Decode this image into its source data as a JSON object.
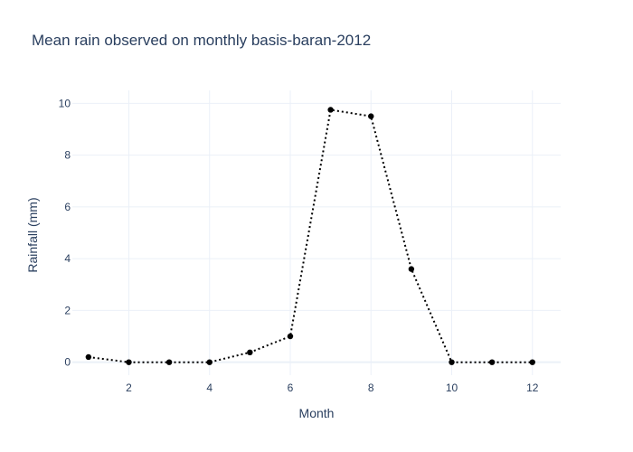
{
  "chart_data": {
    "type": "line",
    "title": "Mean rain observed on monthly basis-baran-2012",
    "xlabel": "Month",
    "ylabel": "Rainfall (mm)",
    "xlim": [
      0.6,
      12.7
    ],
    "ylim": [
      -0.5,
      10.5
    ],
    "x_ticks": [
      2,
      4,
      6,
      8,
      10,
      12
    ],
    "y_ticks": [
      0,
      2,
      4,
      6,
      8,
      10
    ],
    "grid": true,
    "line_style": "dotted",
    "line_color": "#000000",
    "x": [
      1,
      2,
      3,
      4,
      5,
      6,
      7,
      8,
      9,
      10,
      11,
      12
    ],
    "y": [
      0.2,
      0.0,
      0.0,
      0.0,
      0.38,
      1.0,
      9.75,
      9.5,
      3.6,
      0.0,
      0.0,
      0.0
    ]
  }
}
